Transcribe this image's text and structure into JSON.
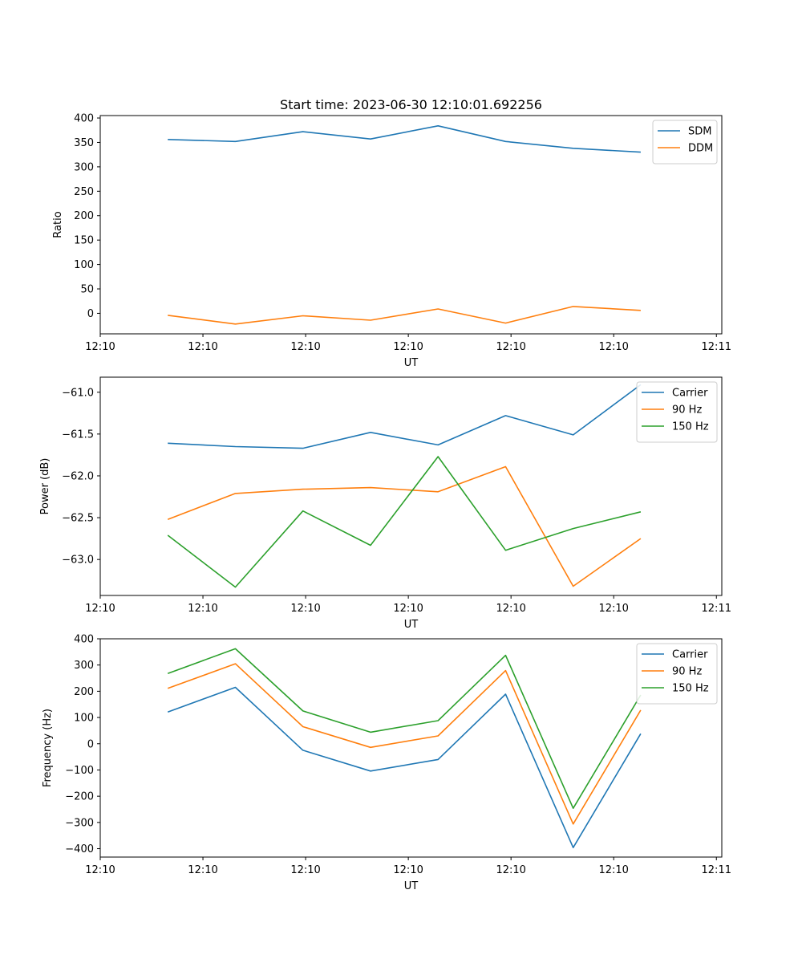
{
  "figure": {
    "title": "Start time: 2023-06-30 12:10:01.692256"
  },
  "colors": {
    "blue": "#1f77b4",
    "orange": "#ff7f0e",
    "green": "#2ca02c"
  },
  "chart_data": [
    {
      "type": "line",
      "title": "Start time: 2023-06-30 12:10:01.692256",
      "xlabel": "UT",
      "ylabel": "Ratio",
      "x": [
        1,
        2,
        3,
        4,
        5,
        6,
        7,
        8
      ],
      "xlim": [
        0,
        9.2
      ],
      "x_ticks": [
        {
          "pos": 0,
          "label": "12:10"
        },
        {
          "pos": 1.52,
          "label": "12:10"
        },
        {
          "pos": 3.04,
          "label": "12:10"
        },
        {
          "pos": 4.56,
          "label": "12:10"
        },
        {
          "pos": 6.08,
          "label": "12:10"
        },
        {
          "pos": 7.6,
          "label": "12:10"
        },
        {
          "pos": 9.12,
          "label": "12:11"
        }
      ],
      "ylim": [
        -42,
        405
      ],
      "yticks": [
        0,
        50,
        100,
        150,
        200,
        250,
        300,
        350,
        400
      ],
      "legend_position": "top-right",
      "series": [
        {
          "name": "SDM",
          "color": "#1f77b4",
          "values": [
            356,
            352,
            372,
            357,
            384,
            352,
            338,
            330
          ]
        },
        {
          "name": "DDM",
          "color": "#ff7f0e",
          "values": [
            -4,
            -22,
            -5,
            -14,
            9,
            -20,
            14,
            6
          ]
        }
      ]
    },
    {
      "type": "line",
      "xlabel": "UT",
      "ylabel": "Power (dB)",
      "x": [
        1,
        2,
        3,
        4,
        5,
        6,
        7,
        8
      ],
      "xlim": [
        0,
        9.2
      ],
      "x_ticks": [
        {
          "pos": 0,
          "label": "12:10"
        },
        {
          "pos": 1.52,
          "label": "12:10"
        },
        {
          "pos": 3.04,
          "label": "12:10"
        },
        {
          "pos": 4.56,
          "label": "12:10"
        },
        {
          "pos": 6.08,
          "label": "12:10"
        },
        {
          "pos": 7.6,
          "label": "12:10"
        },
        {
          "pos": 9.12,
          "label": "12:11"
        }
      ],
      "ylim": [
        -63.43,
        -60.82
      ],
      "yticks": [
        -63.0,
        -62.5,
        -62.0,
        -61.5,
        -61.0
      ],
      "ytick_labels": [
        "−63.0",
        "−62.5",
        "−62.0",
        "−61.5",
        "−61.0"
      ],
      "legend_position": "top-right",
      "series": [
        {
          "name": "Carrier",
          "color": "#1f77b4",
          "values": [
            -61.61,
            -61.65,
            -61.67,
            -61.48,
            -61.63,
            -61.28,
            -61.51,
            -60.91
          ]
        },
        {
          "name": "90 Hz",
          "color": "#ff7f0e",
          "values": [
            -62.52,
            -62.21,
            -62.16,
            -62.14,
            -62.19,
            -61.89,
            -63.32,
            -62.75
          ]
        },
        {
          "name": "150 Hz",
          "color": "#2ca02c",
          "values": [
            -62.71,
            -63.33,
            -62.42,
            -62.83,
            -61.77,
            -62.89,
            -62.63,
            -62.43
          ]
        }
      ]
    },
    {
      "type": "line",
      "xlabel": "UT",
      "ylabel": "Frequency (Hz)",
      "x": [
        1,
        2,
        3,
        4,
        5,
        6,
        7,
        8
      ],
      "xlim": [
        0,
        9.2
      ],
      "x_ticks": [
        {
          "pos": 0,
          "label": "12:10"
        },
        {
          "pos": 1.52,
          "label": "12:10"
        },
        {
          "pos": 3.04,
          "label": "12:10"
        },
        {
          "pos": 4.56,
          "label": "12:10"
        },
        {
          "pos": 6.08,
          "label": "12:10"
        },
        {
          "pos": 7.6,
          "label": "12:10"
        },
        {
          "pos": 9.12,
          "label": "12:11"
        }
      ],
      "ylim": [
        -432,
        400
      ],
      "yticks": [
        -400,
        -300,
        -200,
        -100,
        0,
        100,
        200,
        300,
        400
      ],
      "ytick_labels": [
        "−400",
        "−300",
        "−200",
        "−100",
        "0",
        "100",
        "200",
        "300",
        "400"
      ],
      "legend_position": "top-right",
      "series": [
        {
          "name": "Carrier",
          "color": "#1f77b4",
          "values": [
            121,
            215,
            -25,
            -104,
            -60,
            189,
            -396,
            38
          ]
        },
        {
          "name": "90 Hz",
          "color": "#ff7f0e",
          "values": [
            211,
            305,
            65,
            -14,
            30,
            279,
            -306,
            128
          ]
        },
        {
          "name": "150 Hz",
          "color": "#2ca02c",
          "values": [
            268,
            362,
            125,
            44,
            88,
            337,
            -246,
            186
          ]
        }
      ]
    }
  ]
}
